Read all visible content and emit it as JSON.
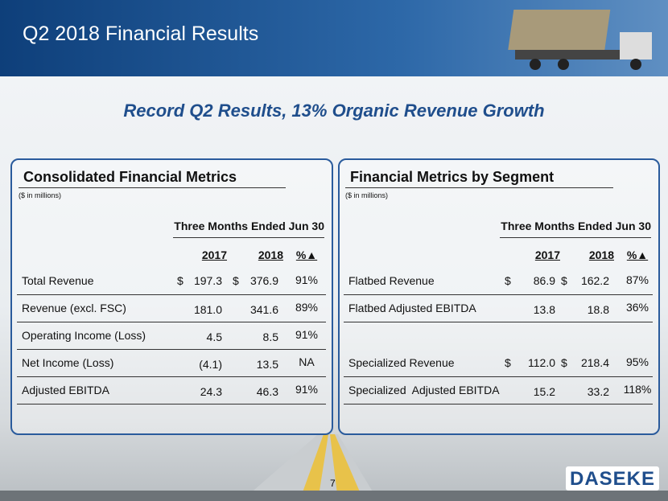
{
  "header": {
    "title": "Q2 2018 Financial Results"
  },
  "subtitle": "Record Q2 Results, 13% Organic Revenue Growth",
  "panels": [
    {
      "title": "Consolidated Financial Metrics",
      "note": "($ in millions)",
      "period": "Three Months Ended Jun 30",
      "columns": [
        "2017",
        "2018",
        "%▲"
      ],
      "groups": [
        [
          [
            "Total Revenue",
            [
              "$",
              "197.3"
            ],
            [
              "$",
              "376.9"
            ],
            "91%"
          ],
          [
            "Revenue (excl. FSC)",
            "181.0",
            "341.6",
            "89%"
          ],
          [
            "Operating Income (Loss)",
            "4.5",
            "8.5",
            "91%"
          ],
          [
            "Net Income (Loss)",
            "(4.1)",
            "13.5",
            "NA"
          ],
          [
            "Adjusted EBITDA",
            "24.3",
            "46.3",
            "91%"
          ]
        ]
      ]
    },
    {
      "title": "Financial Metrics by Segment",
      "note": "($ in millions)",
      "period": "Three Months Ended Jun 30",
      "columns": [
        "2017",
        "2018",
        "%▲"
      ],
      "groups": [
        [
          [
            "Flatbed Revenue",
            [
              "$",
              "86.9"
            ],
            [
              "$",
              "162.2"
            ],
            "87%"
          ],
          [
            "Flatbed Adjusted EBITDA",
            "13.8",
            "18.8",
            "36%"
          ]
        ],
        [
          [
            "Specialized Revenue",
            [
              "$",
              "112.0"
            ],
            [
              "$",
              "218.4"
            ],
            "95%"
          ],
          [
            "Specialized  Adjusted EBITDA",
            "15.2",
            "33.2",
            "118%"
          ]
        ]
      ]
    }
  ],
  "page_number": "7",
  "logo": "DASEKE"
}
